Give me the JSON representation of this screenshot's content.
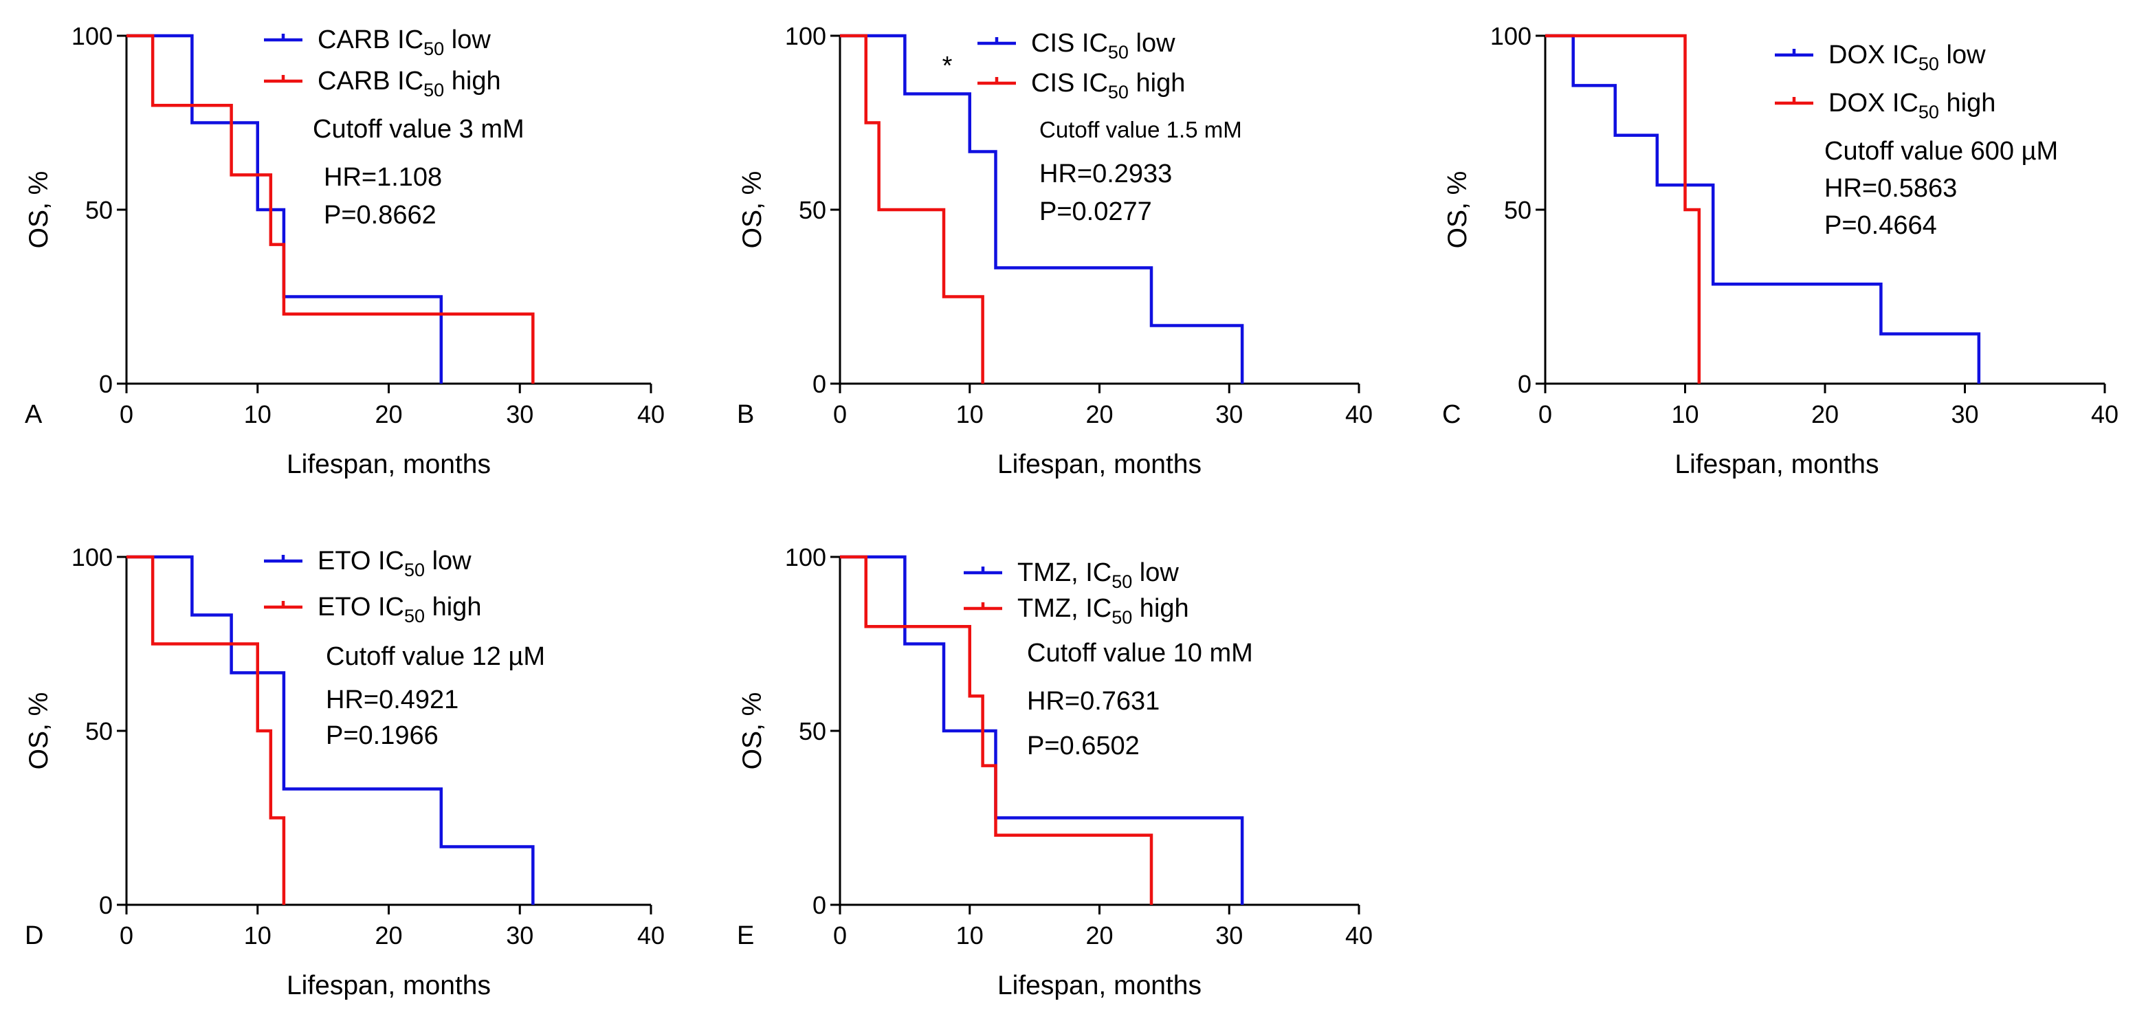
{
  "colors": {
    "low": "#1010e0",
    "high": "#ee1111",
    "axis": "#000000"
  },
  "chart_data": [
    {
      "type": "line",
      "panel": "A",
      "xlabel": "Lifespan, months",
      "ylabel": "OS, %",
      "xlim": [
        0,
        40
      ],
      "ylim": [
        0,
        100
      ],
      "xticks": [
        0,
        10,
        20,
        30,
        40
      ],
      "yticks": [
        0,
        50,
        100
      ],
      "legend": [
        {
          "prefix": "CARB IC",
          "sub": "50",
          "suffix": " low"
        },
        {
          "prefix": "CARB IC",
          "sub": "50",
          "suffix": " high"
        }
      ],
      "annotations": [
        "Cutoff value 3 mM",
        "HR=1.108",
        "P=0.8662"
      ],
      "series": [
        {
          "name": "CARB IC50 low",
          "x": [
            0,
            5,
            10,
            11,
            12,
            24
          ],
          "y": [
            100,
            75,
            50,
            50,
            25,
            0
          ]
        },
        {
          "name": "CARB IC50 high",
          "x": [
            0,
            2,
            8,
            11,
            12,
            31
          ],
          "y": [
            100,
            80,
            60,
            40,
            20,
            0
          ]
        }
      ]
    },
    {
      "type": "line",
      "panel": "B",
      "xlabel": "Lifespan, months",
      "ylabel": "OS, %",
      "xlim": [
        0,
        40
      ],
      "ylim": [
        0,
        100
      ],
      "xticks": [
        0,
        10,
        20,
        30,
        40
      ],
      "yticks": [
        0,
        50,
        100
      ],
      "legend": [
        {
          "prefix": "CIS IC",
          "sub": "50",
          "suffix": " low"
        },
        {
          "prefix": "CIS IC",
          "sub": "50",
          "suffix": " high"
        }
      ],
      "annotations": [
        "Cutoff value 1.5 mM",
        "HR=0.2933",
        "P=0.0277"
      ],
      "significance": "*",
      "series": [
        {
          "name": "CIS IC50 low",
          "x": [
            0,
            5,
            10,
            12,
            24,
            31
          ],
          "y": [
            100,
            83.3,
            66.7,
            33.3,
            16.7,
            0
          ]
        },
        {
          "name": "CIS IC50 high",
          "x": [
            0,
            2,
            3,
            8,
            11
          ],
          "y": [
            100,
            75,
            50,
            25,
            0
          ]
        }
      ]
    },
    {
      "type": "line",
      "panel": "C",
      "xlabel": "Lifespan, months",
      "ylabel": "OS, %",
      "xlim": [
        0,
        40
      ],
      "ylim": [
        0,
        100
      ],
      "xticks": [
        0,
        10,
        20,
        30,
        40
      ],
      "yticks": [
        0,
        50,
        100
      ],
      "legend": [
        {
          "prefix": "DOX IC",
          "sub": "50",
          "suffix": " low"
        },
        {
          "prefix": "DOX IC",
          "sub": "50",
          "suffix": " high"
        }
      ],
      "annotations": [
        "Cutoff value 600 µM",
        "HR=0.5863",
        "P=0.4664"
      ],
      "series": [
        {
          "name": "DOX IC50 low",
          "x": [
            0,
            2,
            5,
            8,
            12,
            24,
            31
          ],
          "y": [
            100,
            85.7,
            71.4,
            57.1,
            28.6,
            14.3,
            0
          ]
        },
        {
          "name": "DOX IC50 high",
          "x": [
            0,
            10,
            11
          ],
          "y": [
            100,
            50,
            0
          ]
        }
      ]
    },
    {
      "type": "line",
      "panel": "D",
      "xlabel": "Lifespan, months",
      "ylabel": "OS, %",
      "xlim": [
        0,
        40
      ],
      "ylim": [
        0,
        100
      ],
      "xticks": [
        0,
        10,
        20,
        30,
        40
      ],
      "yticks": [
        0,
        50,
        100
      ],
      "legend": [
        {
          "prefix": "ETO IC",
          "sub": "50",
          "suffix": " low"
        },
        {
          "prefix": "ETO IC",
          "sub": "50",
          "suffix": " high"
        }
      ],
      "annotations": [
        "Cutoff value 12 µM",
        "HR=0.4921",
        "P=0.1966"
      ],
      "series": [
        {
          "name": "ETO IC50 low",
          "x": [
            0,
            5,
            8,
            12,
            24,
            31
          ],
          "y": [
            100,
            83.3,
            66.7,
            33.3,
            16.7,
            0
          ]
        },
        {
          "name": "ETO IC50 high",
          "x": [
            0,
            2,
            10,
            11,
            12
          ],
          "y": [
            100,
            75,
            50,
            25,
            0
          ]
        }
      ]
    },
    {
      "type": "line",
      "panel": "E",
      "xlabel": "Lifespan, months",
      "ylabel": "OS, %",
      "xlim": [
        0,
        40
      ],
      "ylim": [
        0,
        100
      ],
      "xticks": [
        0,
        10,
        20,
        30,
        40
      ],
      "yticks": [
        0,
        50,
        100
      ],
      "legend": [
        {
          "prefix": "TMZ, IC",
          "sub": "50",
          "suffix": " low"
        },
        {
          "prefix": "TMZ, IC",
          "sub": "50",
          "suffix": " high"
        }
      ],
      "annotations": [
        "Cutoff value 10 mM",
        "HR=0.7631",
        "P=0.6502"
      ],
      "series": [
        {
          "name": "TMZ, IC50 low",
          "x": [
            0,
            5,
            8,
            12,
            31
          ],
          "y": [
            100,
            75,
            50,
            25,
            0
          ]
        },
        {
          "name": "TMZ, IC50 high",
          "x": [
            0,
            2,
            10,
            11,
            12,
            24
          ],
          "y": [
            100,
            80,
            60,
            40,
            20,
            0
          ]
        }
      ]
    }
  ]
}
